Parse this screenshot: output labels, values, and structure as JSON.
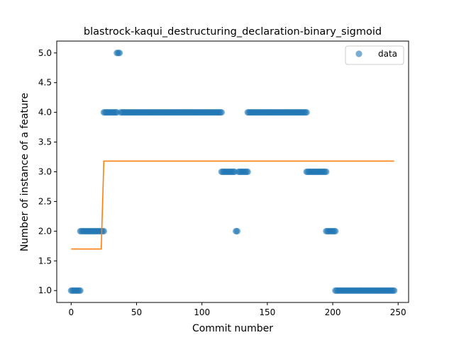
{
  "chart_data": {
    "type": "scatter",
    "title": "blastrock-kaqui_destructuring_declaration-binary_sigmoid",
    "xlabel": "Commit number",
    "ylabel": "Number of instance of a feature",
    "xlim": [
      -11,
      258
    ],
    "ylim": [
      0.8,
      5.2
    ],
    "xticks": [
      0,
      50,
      100,
      150,
      200,
      250
    ],
    "yticks": [
      1.0,
      1.5,
      2.0,
      2.5,
      3.0,
      3.5,
      4.0,
      4.5,
      5.0
    ],
    "xtick_labels": [
      "0",
      "50",
      "100",
      "150",
      "200",
      "250"
    ],
    "ytick_labels": [
      "1.0",
      "1.5",
      "2.0",
      "2.5",
      "3.0",
      "3.5",
      "4.0",
      "4.5",
      "5.0"
    ],
    "grid": false,
    "legend_position": "top-right",
    "colors": {
      "data": "#1f77b4",
      "fit": "#ff7f0e"
    },
    "legend": [
      "data"
    ],
    "series": [
      {
        "name": "data",
        "kind": "scatter",
        "segments": [
          {
            "from": 0,
            "to": 7,
            "y": 1
          },
          {
            "from": 7,
            "to": 25,
            "y": 2
          },
          {
            "from": 25,
            "to": 35,
            "y": 4
          },
          {
            "from": 35,
            "to": 37,
            "y": 5
          },
          {
            "from": 38,
            "to": 115,
            "y": 4
          },
          {
            "from": 115,
            "to": 125,
            "y": 3
          },
          {
            "from": 126,
            "to": 127,
            "y": 2
          },
          {
            "from": 128,
            "to": 135,
            "y": 3
          },
          {
            "from": 135,
            "to": 180,
            "y": 4
          },
          {
            "from": 180,
            "to": 195,
            "y": 3
          },
          {
            "from": 195,
            "to": 202,
            "y": 2
          },
          {
            "from": 202,
            "to": 247,
            "y": 1
          }
        ]
      },
      {
        "kind": "line",
        "points": [
          [
            0,
            1.7
          ],
          [
            23,
            1.7
          ],
          [
            25,
            3.18
          ],
          [
            247,
            3.18
          ]
        ]
      }
    ]
  }
}
